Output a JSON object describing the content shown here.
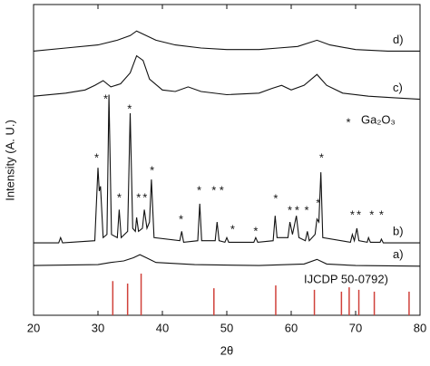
{
  "chart_data": {
    "type": "line",
    "x_label": "2θ",
    "y_label": "Intensity (A. U.)",
    "xlim": [
      20,
      80
    ],
    "xticks": [
      20,
      30,
      40,
      50,
      60,
      70,
      80
    ],
    "ylim": [
      0,
      100
    ],
    "series": [
      {
        "name": "d)",
        "color": "#111111",
        "x": [
          20,
          25,
          30,
          33,
          35,
          36,
          37,
          39,
          42,
          46,
          50,
          55,
          58,
          61,
          64,
          66,
          70,
          75,
          80
        ],
        "values": [
          85,
          86,
          87,
          88.5,
          90,
          91.5,
          90.5,
          88.5,
          87,
          86,
          85.5,
          85.5,
          86,
          86.5,
          88.5,
          87,
          85.5,
          85,
          85
        ]
      },
      {
        "name": "c)",
        "color": "#111111",
        "x": [
          20,
          25,
          28,
          29.5,
          30.8,
          32,
          33.5,
          35,
          36,
          37,
          38,
          40,
          42,
          44,
          46,
          50,
          55,
          57,
          58.5,
          60,
          62,
          64,
          65.5,
          68,
          72,
          76,
          80
        ],
        "values": [
          70.5,
          71.5,
          72.5,
          74,
          75.5,
          73.5,
          74.5,
          78,
          83.5,
          82,
          76,
          72.5,
          72,
          73.5,
          72,
          71,
          71.5,
          73,
          74,
          72.5,
          74,
          77.5,
          74,
          71.5,
          70.5,
          70,
          69.5
        ]
      },
      {
        "name": "b)",
        "color": "#111111",
        "x": [
          20,
          23.9,
          24.2,
          24.5,
          29.5,
          30,
          30.2,
          30.4,
          30.8,
          31.4,
          31.7,
          32.1,
          33,
          33.3,
          33.6,
          34.6,
          35,
          35.4,
          35.8,
          36,
          36.3,
          36.9,
          37.2,
          37.6,
          38,
          38.3,
          38.7,
          42.7,
          43,
          43.3,
          45.5,
          45.8,
          46.1,
          48.2,
          48.5,
          48.8,
          49.7,
          50,
          50.3,
          54.2,
          54.5,
          54.8,
          57.2,
          57.5,
          57.8,
          59.5,
          59.8,
          60.2,
          60.8,
          61.2,
          62.2,
          62.5,
          62.8,
          63.7,
          64,
          64.3,
          64.6,
          64.9,
          69.2,
          69.5,
          69.8,
          70.2,
          70.5,
          71.8,
          72,
          72.3,
          73.8,
          74,
          74.3,
          80
        ],
        "values": [
          23.3,
          23.3,
          25,
          23.3,
          24,
          47.5,
          40,
          41.5,
          25,
          26,
          71,
          26,
          25,
          34,
          25,
          27,
          65,
          28,
          27,
          31.5,
          27,
          28,
          34,
          28,
          30,
          43.7,
          25,
          24,
          27,
          23.5,
          24,
          35.9,
          24,
          24,
          30,
          24,
          23.5,
          25,
          23.5,
          23.5,
          25,
          23.5,
          24,
          32,
          25,
          25,
          30,
          26,
          32,
          25,
          24,
          27,
          24,
          26,
          31,
          30,
          46,
          25,
          23.5,
          26,
          24,
          28,
          24,
          23.5,
          25,
          23.5,
          23.5,
          24.5,
          23.3,
          23.3
        ]
      },
      {
        "name": "a)",
        "color": "#111111",
        "x": [
          20,
          30,
          32,
          34,
          35.5,
          36.5,
          37.5,
          39,
          45,
          55,
          62,
          64,
          65.5,
          70,
          80
        ],
        "values": [
          16,
          16.3,
          17,
          17.5,
          18.5,
          19.5,
          18.5,
          17,
          16.3,
          16,
          16.5,
          18,
          16.5,
          16,
          15.8
        ]
      }
    ],
    "reference": {
      "name": "IJCDP 50-0792)",
      "color": "#d0413a",
      "x": [
        32.3,
        34.6,
        36.7,
        48,
        57.6,
        63.6,
        67.8,
        69,
        70.5,
        72.9,
        78.3
      ],
      "values": [
        11,
        10.2,
        13.4,
        8.7,
        9.6,
        8.2,
        7.6,
        9,
        8.2,
        7.6,
        7.6
      ]
    },
    "peaks": {
      "symbol": "*",
      "phase": "Ga₂O₃",
      "x": [
        29.8,
        31.2,
        34.9,
        33.3,
        36.3,
        37.3,
        38.4,
        42.9,
        45.7,
        48,
        49.2,
        50.9,
        54.5,
        57.6,
        59.8,
        60.9,
        62.4,
        64.2,
        64.7,
        69.5,
        70.5,
        72.5,
        74
      ],
      "y": [
        51.3,
        70.3,
        67,
        38.5,
        38.5,
        38.5,
        47.2,
        31.5,
        40.8,
        40.8,
        40.8,
        28.3,
        27.7,
        38.2,
        34.4,
        34.4,
        34.4,
        36.7,
        51.3,
        32.9,
        32.9,
        32.9,
        32.9
      ]
    }
  }
}
